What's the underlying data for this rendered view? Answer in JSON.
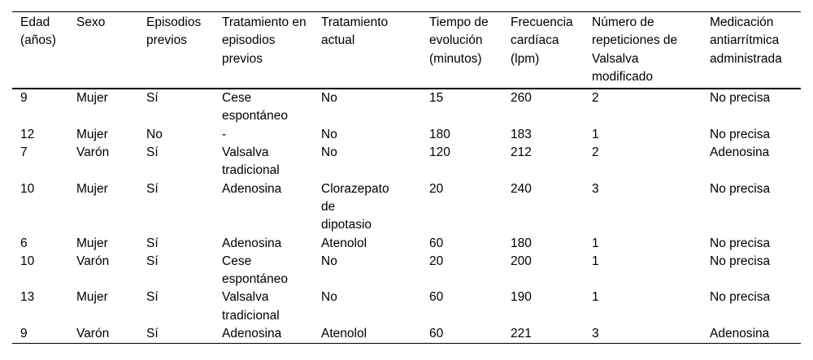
{
  "table": {
    "description": "Tabla de pacientes pediátricos con taquicardia supraventricular",
    "columns": [
      {
        "label": "Edad\n(años)"
      },
      {
        "label": "Sexo"
      },
      {
        "label": "Episodios\nprevios"
      },
      {
        "label": "Tratamiento en\nepisodios\nprevios"
      },
      {
        "label": "Tratamiento\nactual"
      },
      {
        "label": "Tiempo de\nevolución\n(minutos)"
      },
      {
        "label": "Frecuencia\ncardíaca\n(lpm)"
      },
      {
        "label": "Número de\nrepeticiones de\nValsalva\nmodificado"
      },
      {
        "label": "Medicación\nantiarrítmica\nadministrada"
      }
    ],
    "rows": [
      [
        "9",
        "Mujer",
        "Sí",
        "Cese\nespontáneo",
        "No",
        "15",
        "260",
        "2",
        "No precisa"
      ],
      [
        "12",
        "Mujer",
        "No",
        "-",
        "No",
        "180",
        "183",
        "1",
        "No precisa"
      ],
      [
        "7",
        "Varón",
        "Sí",
        "Valsalva\ntradicional",
        "No",
        "120",
        "212",
        "2",
        "Adenosina"
      ],
      [
        "10",
        "Mujer",
        "Sí",
        "Adenosina",
        "Clorazepato\nde\ndipotasio",
        "20",
        "240",
        "3",
        "No precisa"
      ],
      [
        "6",
        "Mujer",
        "Sí",
        "Adenosina",
        "Atenolol",
        "60",
        "180",
        "1",
        "No precisa"
      ],
      [
        "10",
        "Varón",
        "Sí",
        "Cese\nespontáneo",
        "No",
        "20",
        "200",
        "1",
        "No precisa"
      ],
      [
        "13",
        "Mujer",
        "Sí",
        "Valsalva\ntradicional",
        "No",
        "60",
        "190",
        "1",
        "No precisa"
      ],
      [
        "9",
        "Varón",
        "Sí",
        "Adenosina",
        "Atenolol",
        "60",
        "221",
        "3",
        "Adenosina"
      ]
    ],
    "colors": {
      "text": "#000000",
      "rule": "#000000",
      "background": "#ffffff"
    }
  }
}
